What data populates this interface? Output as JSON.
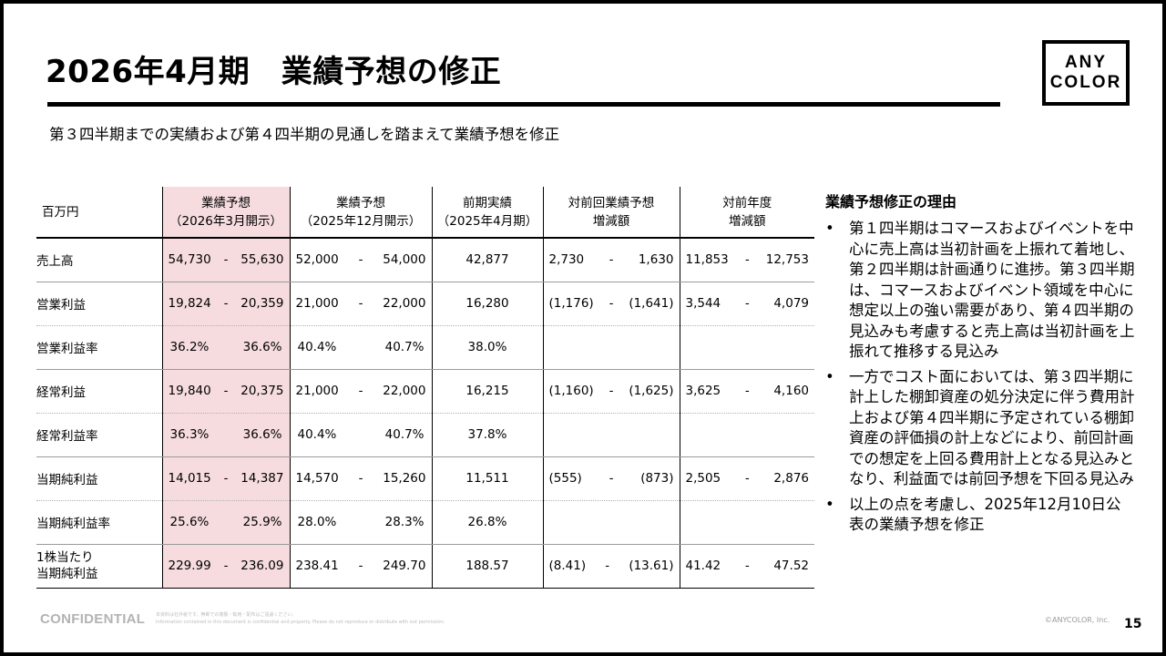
{
  "title": "2026年4月期　業績予想の修正",
  "logo": {
    "line1": "ANY",
    "line2": "COLOR"
  },
  "subtitle": "第３四半期までの実績および第４四半期の見通しを踏まえて業績予想を修正",
  "table": {
    "unit": "百万円",
    "headers": [
      {
        "line1": "業績予想",
        "line2": "（2026年3月開示）"
      },
      {
        "line1": "業績予想",
        "line2": "（2025年12月開示）"
      },
      {
        "line1": "前期実績",
        "line2": "（2025年4月期）"
      },
      {
        "line1": "対前回業績予想",
        "line2": "増減額"
      },
      {
        "line1": "対前年度",
        "line2": "増減額"
      }
    ],
    "rows": [
      {
        "label": "売上高",
        "c1": [
          "54,730",
          "-",
          "55,630"
        ],
        "c2": [
          "52,000",
          "-",
          "54,000"
        ],
        "c3": "42,877",
        "c4": [
          "2,730",
          "-",
          "1,630"
        ],
        "c5": [
          "11,853",
          "-",
          "12,753"
        ]
      },
      {
        "label": "営業利益",
        "c1": [
          "19,824",
          "-",
          "20,359"
        ],
        "c2": [
          "21,000",
          "-",
          "22,000"
        ],
        "c3": "16,280",
        "c4": [
          "(1,176)",
          "-",
          "(1,641)"
        ],
        "c5": [
          "3,544",
          "-",
          "4,079"
        ]
      },
      {
        "label": "営業利益率",
        "c1": [
          "36.2%",
          "36.6%"
        ],
        "c2": [
          "40.4%",
          "40.7%"
        ],
        "c3": "38.0%"
      },
      {
        "label": "経常利益",
        "c1": [
          "19,840",
          "-",
          "20,375"
        ],
        "c2": [
          "21,000",
          "-",
          "22,000"
        ],
        "c3": "16,215",
        "c4": [
          "(1,160)",
          "-",
          "(1,625)"
        ],
        "c5": [
          "3,625",
          "-",
          "4,160"
        ]
      },
      {
        "label": "経常利益率",
        "c1": [
          "36.3%",
          "36.6%"
        ],
        "c2": [
          "40.4%",
          "40.7%"
        ],
        "c3": "37.8%"
      },
      {
        "label": "当期純利益",
        "c1": [
          "14,015",
          "-",
          "14,387"
        ],
        "c2": [
          "14,570",
          "-",
          "15,260"
        ],
        "c3": "11,511",
        "c4": [
          "(555)",
          "-",
          "(873)"
        ],
        "c5": [
          "2,505",
          "-",
          "2,876"
        ]
      },
      {
        "label": "当期純利益率",
        "c1": [
          "25.6%",
          "25.9%"
        ],
        "c2": [
          "28.0%",
          "28.3%"
        ],
        "c3": "26.8%"
      },
      {
        "label_line1": "1株当たり",
        "label_line2": "当期純利益",
        "c1": [
          "229.99",
          "-",
          "236.09"
        ],
        "c2": [
          "238.41",
          "-",
          "249.70"
        ],
        "c3": "188.57",
        "c4": [
          "(8.41)",
          "-",
          "(13.61)"
        ],
        "c5": [
          "41.42",
          "-",
          "47.52"
        ]
      }
    ]
  },
  "reason": {
    "title": "業績予想修正の理由",
    "bullet": "•",
    "items": [
      "第１四半期はコマースおよびイベントを中心に売上高は当初計画を上振れて着地し、第２四半期は計画通りに進捗。第３四半期は、コマースおよびイベント領域を中心に想定以上の強い需要があり、第４四半期の見込みも考慮すると売上高は当初計画を上振れて推移する見込み",
      "一方でコスト面においては、第３四半期に計上した棚卸資産の処分決定に伴う費用計上および第４四半期に予定されている棚卸資産の評価損の計上などにより、前回計画での想定を上回る費用計上となる見込みとなり、利益面では前回予想を下回る見込み",
      "以上の点を考慮し、2025年12月10日公表の業績予想を修正"
    ]
  },
  "footer": {
    "confidential": "CONFIDENTIAL",
    "fine_print_jp": "本資料は社外秘です。無断での複製・転用・配布はご遠慮ください。",
    "fine_print_en": "Information contained in this document is confidential and property. Please do not reproduce or distribute with out permission.",
    "copyright": "©ANYCOLOR, Inc.",
    "page": "15"
  },
  "colors": {
    "highlight_column": "#f6dcdf",
    "confidential_text": "#b3b3b3"
  }
}
